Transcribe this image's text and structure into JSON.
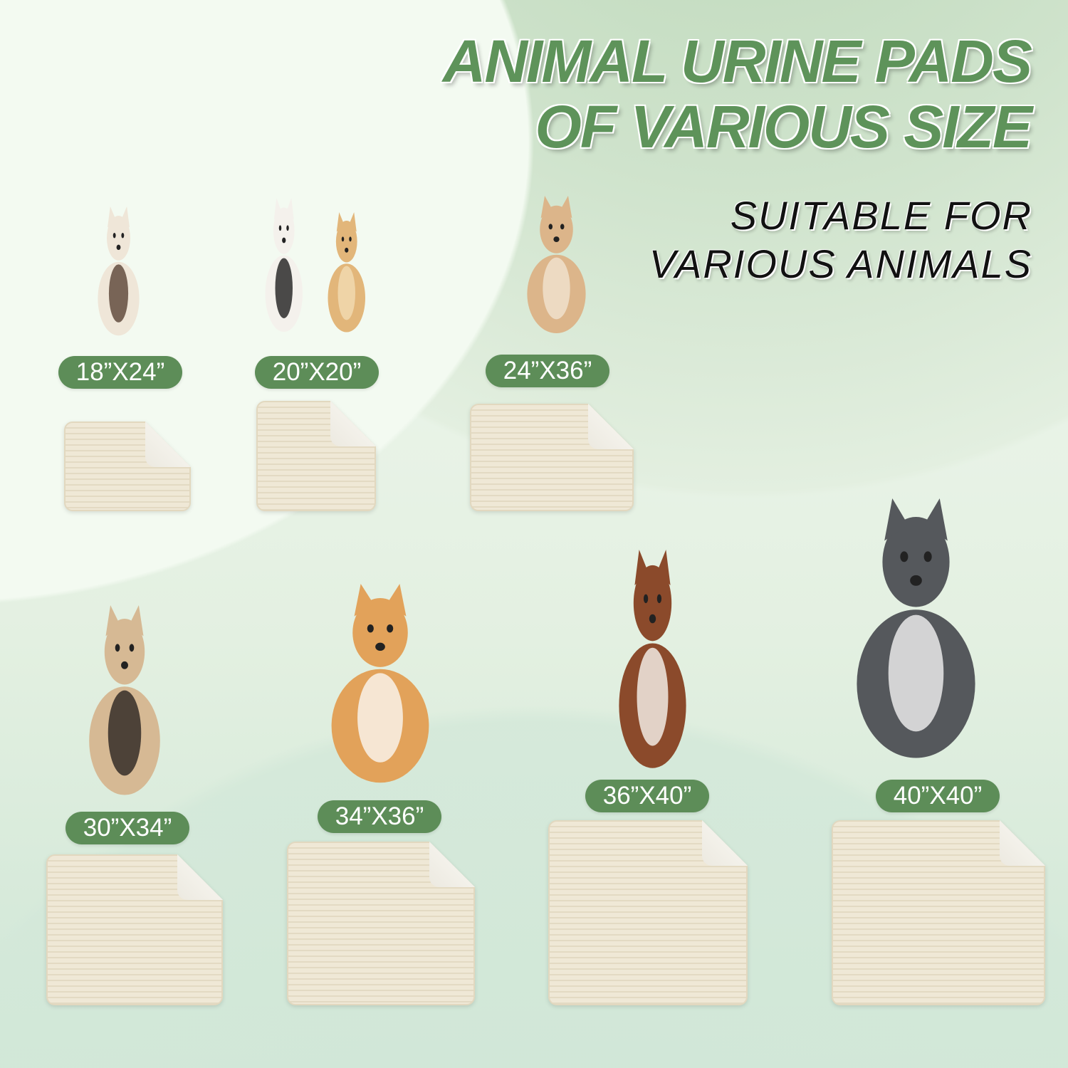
{
  "headline": {
    "line1": "ANIMAL URINE PADS",
    "line2": "OF VARIOUS SIZE"
  },
  "subheadline": {
    "line1": "SUITABLE FOR",
    "line2": "VARIOUS ANIMALS"
  },
  "colors": {
    "accent_green": "#5d8d58",
    "pad_beige": "#efe8d6",
    "text_dark": "#111111"
  },
  "sizes": [
    {
      "label": "18”X24”",
      "animal": "siamese-cat"
    },
    {
      "label": "20”X20”",
      "animal": "cat-and-puppy"
    },
    {
      "label": "24”X36”",
      "animal": "tan-dog"
    },
    {
      "label": "30”X34”",
      "animal": "pug"
    },
    {
      "label": "34”X36”",
      "animal": "corgi"
    },
    {
      "label": "36”X40”",
      "animal": "australian-shepherd"
    },
    {
      "label": "40”X40”",
      "animal": "husky"
    }
  ]
}
